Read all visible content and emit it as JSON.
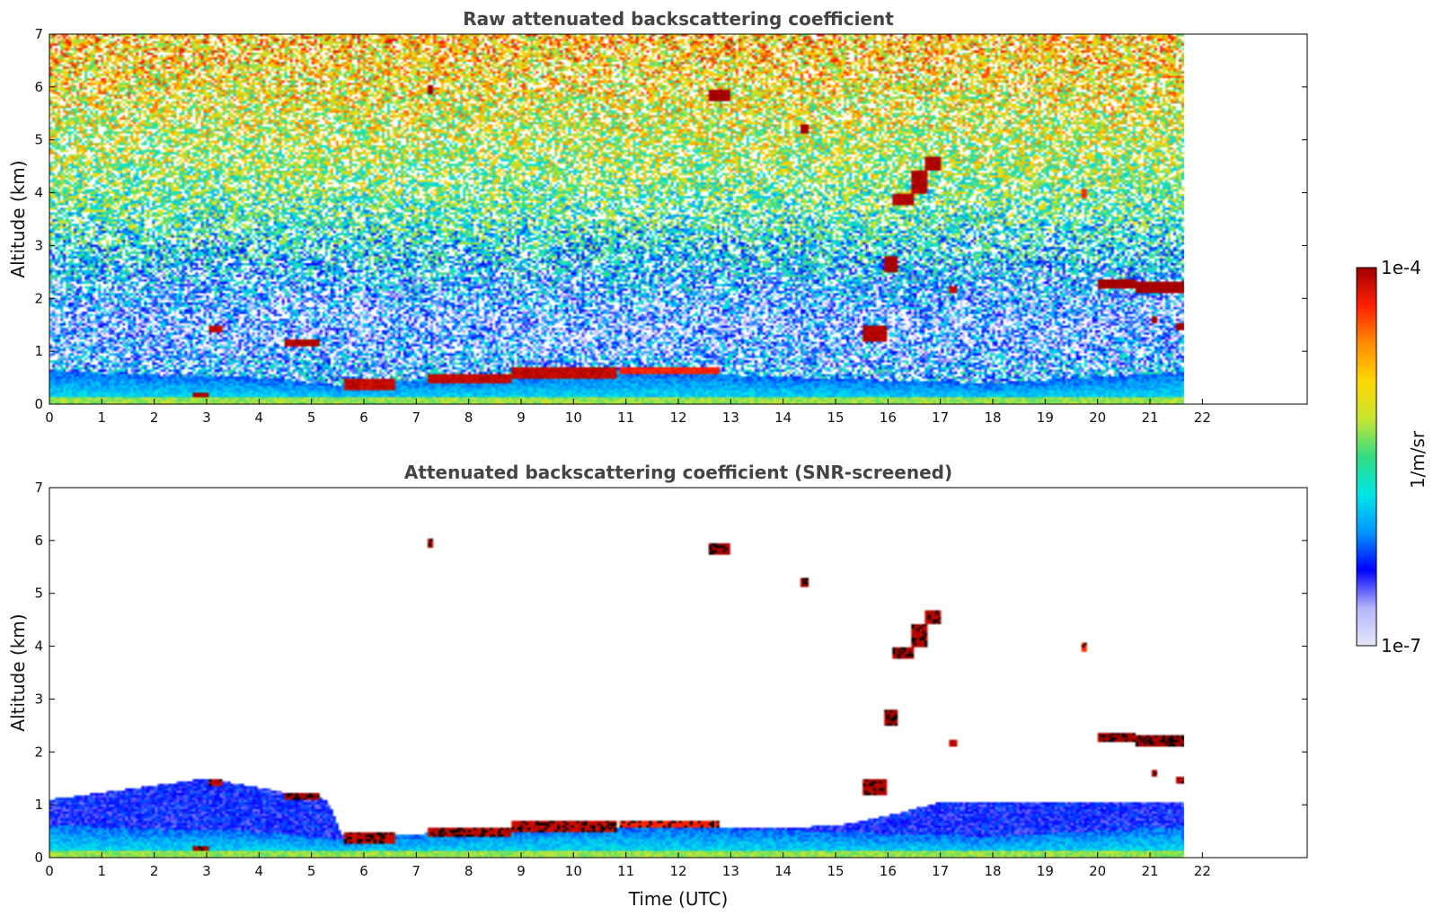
{
  "chart_data": [
    {
      "type": "heatmap",
      "title": "Raw attenuated backscattering coefficient",
      "xlabel": "",
      "ylabel": "Altitude (km)",
      "xlim": [
        0,
        24
      ],
      "ylim": [
        0,
        7
      ],
      "xticks": [
        "0",
        "1",
        "2",
        "3",
        "4",
        "5",
        "6",
        "7",
        "8",
        "9",
        "10",
        "11",
        "12",
        "13",
        "14",
        "15",
        "16",
        "17",
        "18",
        "19",
        "20",
        "21",
        "22"
      ],
      "yticks": [
        "0",
        "1",
        "2",
        "3",
        "4",
        "5",
        "6",
        "7"
      ],
      "data_end_time": 21.65,
      "noise_profile": {
        "altitude_km": [
          0,
          0.6,
          1.0,
          1.5,
          2.5,
          3.5,
          4.5,
          5.5,
          6.5,
          7
        ],
        "log10_beta": [
          -6.0,
          -6.1,
          -6.3,
          -6.45,
          -6.0,
          -5.6,
          -5.3,
          -5.1,
          -4.9,
          -4.8
        ]
      },
      "boundary_layer": [
        {
          "t": 0,
          "top_km": 0.62
        },
        {
          "t": 2,
          "top_km": 0.55
        },
        {
          "t": 4,
          "top_km": 0.5
        },
        {
          "t": 5.6,
          "top_km": 0.35
        },
        {
          "t": 7,
          "top_km": 0.45
        },
        {
          "t": 10,
          "top_km": 0.6
        },
        {
          "t": 13,
          "top_km": 0.55
        },
        {
          "t": 16,
          "top_km": 0.45
        },
        {
          "t": 18,
          "top_km": 0.4
        },
        {
          "t": 21.65,
          "top_km": 0.6
        }
      ],
      "cloud_layers": [
        {
          "t0": 2.75,
          "t1": 3.05,
          "z0": 0.12,
          "z1": 0.22,
          "log10_beta": -4.0
        },
        {
          "t0": 3.05,
          "t1": 3.3,
          "z0": 1.35,
          "z1": 1.5,
          "log10_beta": -4.1
        },
        {
          "t0": 4.5,
          "t1": 5.15,
          "z0": 1.08,
          "z1": 1.22,
          "log10_beta": -4.05
        },
        {
          "t0": 5.6,
          "t1": 6.6,
          "z0": 0.28,
          "z1": 0.5,
          "log10_beta": -4.1
        },
        {
          "t0": 7.2,
          "t1": 8.8,
          "z0": 0.38,
          "z1": 0.55,
          "log10_beta": -4.1
        },
        {
          "t0": 8.8,
          "t1": 10.8,
          "z0": 0.48,
          "z1": 0.68,
          "log10_beta": -4.1
        },
        {
          "t0": 10.9,
          "t1": 12.8,
          "z0": 0.55,
          "z1": 0.7,
          "log10_beta": -4.3
        },
        {
          "t0": 7.22,
          "t1": 7.32,
          "z0": 5.85,
          "z1": 6.05,
          "log10_beta": -4.0
        },
        {
          "t0": 12.6,
          "t1": 13.0,
          "z0": 5.75,
          "z1": 5.95,
          "log10_beta": -4.0
        },
        {
          "t0": 14.35,
          "t1": 14.5,
          "z0": 5.1,
          "z1": 5.3,
          "log10_beta": -4.0
        },
        {
          "t0": 15.5,
          "t1": 16.0,
          "z0": 1.2,
          "z1": 1.5,
          "log10_beta": -4.05
        },
        {
          "t0": 15.95,
          "t1": 16.2,
          "z0": 2.5,
          "z1": 2.8,
          "log10_beta": -4.0
        },
        {
          "t0": 16.1,
          "t1": 16.5,
          "z0": 3.75,
          "z1": 4.0,
          "log10_beta": -4.05
        },
        {
          "t0": 16.45,
          "t1": 16.75,
          "z0": 4.0,
          "z1": 4.4,
          "log10_beta": -4.05
        },
        {
          "t0": 16.7,
          "t1": 17.0,
          "z0": 4.4,
          "z1": 4.7,
          "log10_beta": -4.05
        },
        {
          "t0": 17.15,
          "t1": 17.3,
          "z0": 2.1,
          "z1": 2.25,
          "log10_beta": -4.1
        },
        {
          "t0": 19.7,
          "t1": 19.78,
          "z0": 3.9,
          "z1": 4.05,
          "log10_beta": -4.3
        },
        {
          "t0": 20.0,
          "t1": 20.7,
          "z0": 2.2,
          "z1": 2.35,
          "log10_beta": -4.0
        },
        {
          "t0": 20.7,
          "t1": 21.65,
          "z0": 2.1,
          "z1": 2.3,
          "log10_beta": -4.0
        },
        {
          "t0": 21.05,
          "t1": 21.15,
          "z0": 1.55,
          "z1": 1.68,
          "log10_beta": -4.0
        },
        {
          "t0": 21.5,
          "t1": 21.65,
          "z0": 1.4,
          "z1": 1.52,
          "log10_beta": -4.05
        }
      ]
    },
    {
      "type": "heatmap",
      "title": "Attenuated backscattering coefficient (SNR-screened)",
      "xlabel": "Time (UTC)",
      "ylabel": "Altitude (km)",
      "xlim": [
        0,
        24
      ],
      "ylim": [
        0,
        7
      ],
      "xticks": [
        "0",
        "1",
        "2",
        "3",
        "4",
        "5",
        "6",
        "7",
        "8",
        "9",
        "10",
        "11",
        "12",
        "13",
        "14",
        "15",
        "16",
        "17",
        "18",
        "19",
        "20",
        "21",
        "22"
      ],
      "yticks": [
        "0",
        "1",
        "2",
        "3",
        "4",
        "5",
        "6",
        "7"
      ],
      "data_end_time": 21.65,
      "screened_region": [
        {
          "t": 0,
          "top_km": 1.1
        },
        {
          "t": 3,
          "top_km": 1.5
        },
        {
          "t": 5.3,
          "top_km": 1.1
        },
        {
          "t": 5.6,
          "top_km": 0.4
        },
        {
          "t": 15,
          "top_km": 0.6
        },
        {
          "t": 16,
          "top_km": 0.8
        },
        {
          "t": 17,
          "top_km": 1.05
        },
        {
          "t": 21.65,
          "top_km": 1.05
        }
      ]
    }
  ],
  "colorbar": {
    "label": "1/m/sr",
    "max_label": "1e-4",
    "min_label": "1e-7",
    "range_log10": [
      -7,
      -4
    ],
    "colormap": [
      "#e6e6fa",
      "#b4b4ff",
      "#0000ff",
      "#0096ff",
      "#00e6e6",
      "#32dc82",
      "#c8e632",
      "#ffd700",
      "#ff8c00",
      "#ff1e00",
      "#a00000"
    ]
  }
}
